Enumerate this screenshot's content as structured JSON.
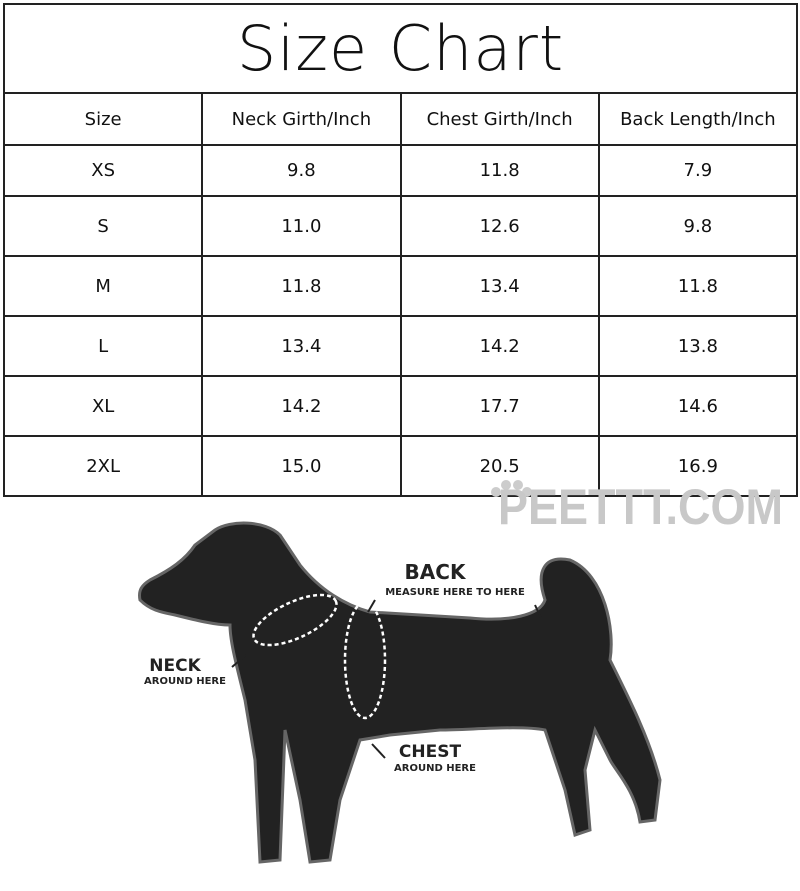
{
  "title": "Size Chart",
  "headers": [
    "Size",
    "Neck Girth/Inch",
    "Chest Girth/Inch",
    "Back Length/Inch"
  ],
  "rows": [
    [
      "XS",
      "9.8",
      "11.8",
      "7.9"
    ],
    [
      "S",
      "11.0",
      "12.6",
      "9.8"
    ],
    [
      "M",
      "11.8",
      "13.4",
      "11.8"
    ],
    [
      "L",
      "13.4",
      "14.2",
      "13.8"
    ],
    [
      "XL",
      "14.2",
      "17.7",
      "14.6"
    ],
    [
      "2XL",
      "15.0",
      "20.5",
      "16.9"
    ]
  ],
  "watermark": "PEETTT.COM",
  "diagram": {
    "back_title": "BACK",
    "back_sub": "MEASURE HERE TO HERE",
    "neck_title": "NECK",
    "neck_sub": "AROUND HERE",
    "chest_title": "CHEST",
    "chest_sub": "AROUND HERE"
  }
}
